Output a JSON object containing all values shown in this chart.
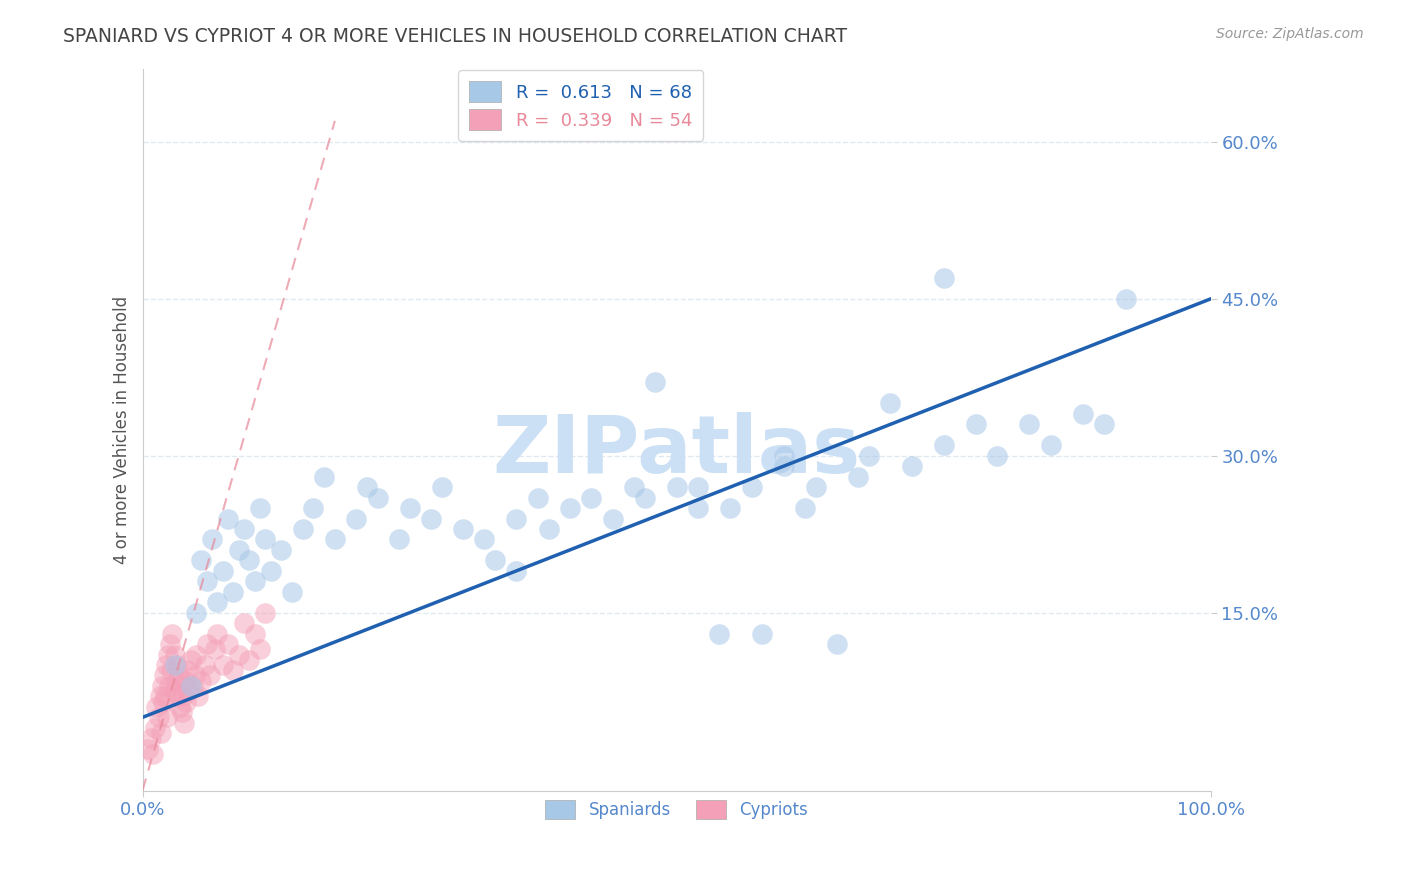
{
  "title": "SPANIARD VS CYPRIOT 4 OR MORE VEHICLES IN HOUSEHOLD CORRELATION CHART",
  "source": "Source: ZipAtlas.com",
  "ylabel": "4 or more Vehicles in Household",
  "xlim": [
    0.0,
    100.0
  ],
  "ylim": [
    -2.0,
    67.0
  ],
  "ytick_vals": [
    15,
    30,
    45,
    60
  ],
  "ytick_labels": [
    "15.0%",
    "30.0%",
    "45.0%",
    "60.0%"
  ],
  "xtick_vals": [
    0,
    100
  ],
  "xtick_labels": [
    "0.0%",
    "100.0%"
  ],
  "r_spaniard": 0.613,
  "n_spaniard": 68,
  "r_cypriot": 0.339,
  "n_cypriot": 54,
  "spaniard_color": "#a8c8e8",
  "cypriot_color": "#f4a0b8",
  "trend_spaniard_color": "#2060b0",
  "trend_cypriot_color": "#e88898",
  "watermark": "ZIPatlas",
  "watermark_color": "#cce0f5",
  "background_color": "#ffffff",
  "title_color": "#444444",
  "axis_label_color": "#555555",
  "tick_color": "#5588cc",
  "grid_color": "#e0e8f0",
  "spaniard_x": [
    3.0,
    4.5,
    5.0,
    5.5,
    6.0,
    6.5,
    7.0,
    7.5,
    8.0,
    8.5,
    9.0,
    9.5,
    10.0,
    10.5,
    11.0,
    11.5,
    12.0,
    13.0,
    14.0,
    15.0,
    16.0,
    17.0,
    18.0,
    20.0,
    21.0,
    22.0,
    24.0,
    25.0,
    27.0,
    28.0,
    30.0,
    32.0,
    33.0,
    35.0,
    37.0,
    38.0,
    40.0,
    42.0,
    44.0,
    46.0,
    48.0,
    50.0,
    52.0,
    54.0,
    55.0,
    57.0,
    58.0,
    60.0,
    62.0,
    63.0,
    65.0,
    67.0,
    68.0,
    70.0,
    72.0,
    75.0,
    78.0,
    80.0,
    83.0,
    85.0,
    88.0,
    90.0,
    92.0,
    35.0,
    47.0,
    52.0,
    60.0,
    75.0
  ],
  "spaniard_y": [
    10.0,
    8.0,
    15.0,
    20.0,
    18.0,
    22.0,
    16.0,
    19.0,
    24.0,
    17.0,
    21.0,
    23.0,
    20.0,
    18.0,
    25.0,
    22.0,
    19.0,
    21.0,
    17.0,
    23.0,
    25.0,
    28.0,
    22.0,
    24.0,
    27.0,
    26.0,
    22.0,
    25.0,
    24.0,
    27.0,
    23.0,
    22.0,
    20.0,
    24.0,
    26.0,
    23.0,
    25.0,
    26.0,
    24.0,
    27.0,
    37.0,
    27.0,
    25.0,
    13.0,
    25.0,
    27.0,
    13.0,
    30.0,
    25.0,
    27.0,
    12.0,
    28.0,
    30.0,
    35.0,
    29.0,
    31.0,
    33.0,
    30.0,
    33.0,
    31.0,
    34.0,
    33.0,
    45.0,
    19.0,
    26.0,
    27.0,
    29.0,
    47.0
  ],
  "cypriot_x": [
    0.5,
    0.8,
    1.0,
    1.2,
    1.3,
    1.5,
    1.6,
    1.7,
    1.8,
    1.9,
    2.0,
    2.1,
    2.2,
    2.3,
    2.4,
    2.5,
    2.6,
    2.7,
    2.8,
    2.9,
    3.0,
    3.1,
    3.2,
    3.3,
    3.4,
    3.5,
    3.6,
    3.7,
    3.8,
    3.9,
    4.0,
    4.1,
    4.2,
    4.3,
    4.5,
    4.7,
    4.9,
    5.0,
    5.2,
    5.5,
    5.8,
    6.0,
    6.3,
    6.8,
    7.0,
    7.5,
    8.0,
    8.5,
    9.0,
    9.5,
    10.0,
    10.5,
    11.0,
    11.5
  ],
  "cypriot_y": [
    2.0,
    3.0,
    1.5,
    4.0,
    6.0,
    5.0,
    7.0,
    3.5,
    8.0,
    6.5,
    9.0,
    7.0,
    10.0,
    5.0,
    11.0,
    8.0,
    12.0,
    9.5,
    13.0,
    7.5,
    11.0,
    8.5,
    10.0,
    7.0,
    9.0,
    6.0,
    8.0,
    5.5,
    7.0,
    4.5,
    8.5,
    6.5,
    9.5,
    7.5,
    10.5,
    8.0,
    9.0,
    11.0,
    7.0,
    8.5,
    10.0,
    12.0,
    9.0,
    11.5,
    13.0,
    10.0,
    12.0,
    9.5,
    11.0,
    14.0,
    10.5,
    13.0,
    11.5,
    15.0
  ],
  "trend_spaniard_x0": 0.0,
  "trend_spaniard_y0": 5.0,
  "trend_spaniard_x1": 100.0,
  "trend_spaniard_y1": 45.0,
  "trend_cypriot_x0": 0.0,
  "trend_cypriot_y0": -2.0,
  "trend_cypriot_x1": 18.0,
  "trend_cypriot_y1": 62.0
}
